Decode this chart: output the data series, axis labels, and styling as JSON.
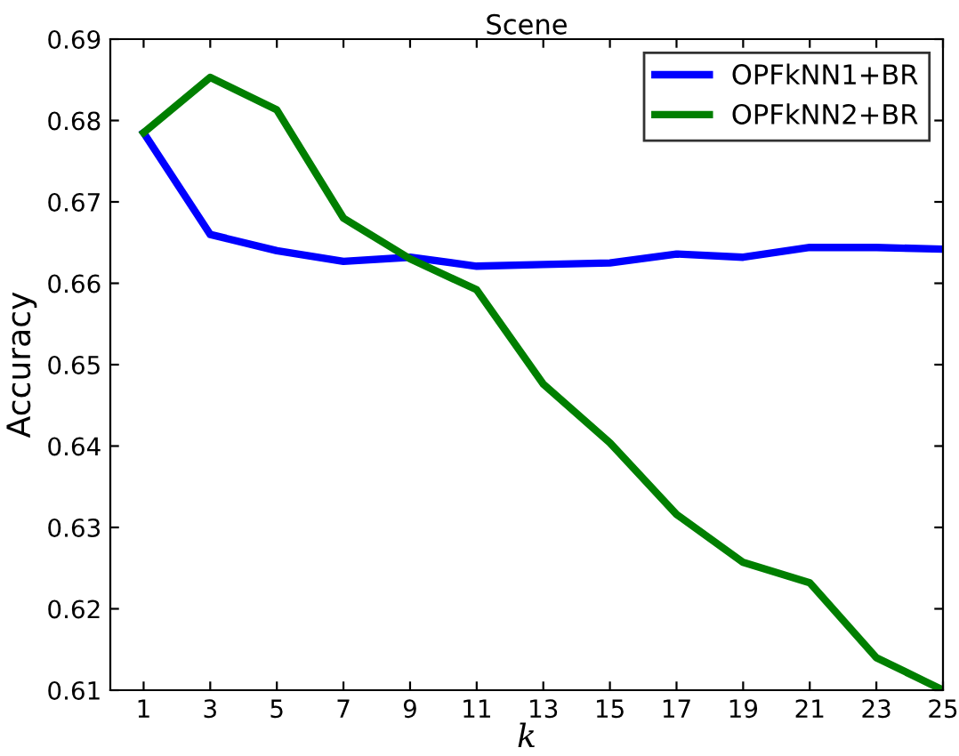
{
  "chart_data": {
    "type": "line",
    "title": "Scene",
    "xlabel": "k",
    "ylabel": "Accuracy",
    "x": [
      1,
      3,
      5,
      7,
      9,
      11,
      13,
      15,
      17,
      19,
      21,
      23,
      25
    ],
    "series": [
      {
        "name": "OPFkNN1+BR",
        "color": "#0000ff",
        "values": [
          0.6785,
          0.666,
          0.664,
          0.6627,
          0.6632,
          0.6621,
          0.6623,
          0.6625,
          0.6636,
          0.6632,
          0.6644,
          0.6644,
          0.6642
        ]
      },
      {
        "name": "OPFkNN2+BR",
        "color": "#007f00",
        "values": [
          0.6785,
          0.6853,
          0.6813,
          0.668,
          0.663,
          0.6592,
          0.6476,
          0.6404,
          0.6316,
          0.6257,
          0.6232,
          0.614,
          0.61
        ]
      }
    ],
    "xlim": [
      0,
      25
    ],
    "xticks": [
      1,
      3,
      5,
      7,
      9,
      11,
      13,
      15,
      17,
      19,
      21,
      23,
      25
    ],
    "ylim": [
      0.61,
      0.69
    ],
    "yticks": [
      {
        "value": 0.61,
        "label": "0.61"
      },
      {
        "value": 0.62,
        "label": "0.62"
      },
      {
        "value": 0.63,
        "label": "0.63"
      },
      {
        "value": 0.64,
        "label": "0.64"
      },
      {
        "value": 0.65,
        "label": "0.65"
      },
      {
        "value": 0.66,
        "label": "0.66"
      },
      {
        "value": 0.67,
        "label": "0.67"
      },
      {
        "value": 0.68,
        "label": "0.68"
      },
      {
        "value": 0.69,
        "label": "0.69"
      }
    ],
    "legend": "top right",
    "grid": false,
    "marker": "none",
    "line_style": "solid"
  }
}
